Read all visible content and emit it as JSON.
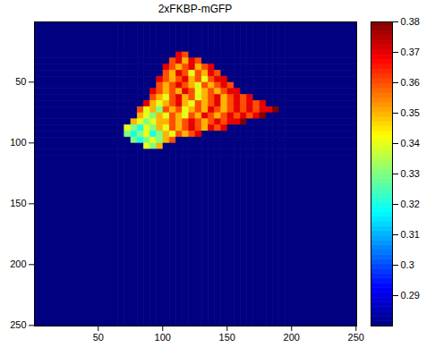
{
  "chart_data": {
    "type": "heatmap",
    "title": "2xFKBP-mGFP",
    "xlim": [
      0.5,
      250.5
    ],
    "ylim": [
      250.5,
      0.5
    ],
    "xticks": [
      50,
      100,
      150,
      200,
      250
    ],
    "yticks": [
      50,
      100,
      150,
      200,
      250
    ],
    "x_edges": [
      0.5,
      65.5,
      70.5,
      75.5,
      80.5,
      85.5,
      90.5,
      95.5,
      100.5,
      105.5,
      110.5,
      115.5,
      120.5,
      125.5,
      130.5,
      135.5,
      140.5,
      145.5,
      150.5,
      155.5,
      160.5,
      165.5,
      170.5,
      175.5,
      180.5,
      185.5,
      190.5,
      195.5,
      250.5
    ],
    "y_edges": [
      0.5,
      25.5,
      30.5,
      35.5,
      40.5,
      45.5,
      50.5,
      55.5,
      60.5,
      65.5,
      70.5,
      75.5,
      80.5,
      85.5,
      90.5,
      95.5,
      100.5,
      105.5,
      110.5,
      250.5
    ],
    "z": [
      [
        0.28,
        0.28,
        0.28,
        0.28,
        0.28,
        0.28,
        0.28,
        0.28,
        0.28,
        0.28,
        0.28,
        0.28,
        0.28,
        0.28,
        0.28,
        0.28,
        0.28,
        0.28,
        0.28,
        0.28,
        0.28,
        0.28,
        0.28,
        0.28,
        0.28,
        0.28,
        0.28,
        0.28
      ],
      [
        0.28,
        0.28,
        0.28,
        0.28,
        0.28,
        0.28,
        0.28,
        0.28,
        0.28,
        0.28,
        0.37,
        0.36,
        0.28,
        0.28,
        0.28,
        0.28,
        0.28,
        0.28,
        0.28,
        0.28,
        0.28,
        0.28,
        0.28,
        0.28,
        0.28,
        0.28,
        0.28,
        0.28
      ],
      [
        0.28,
        0.28,
        0.28,
        0.28,
        0.28,
        0.28,
        0.28,
        0.28,
        0.28,
        0.36,
        0.37,
        0.35,
        0.37,
        0.36,
        0.28,
        0.28,
        0.28,
        0.28,
        0.28,
        0.28,
        0.28,
        0.28,
        0.28,
        0.28,
        0.28,
        0.28,
        0.28,
        0.28
      ],
      [
        0.28,
        0.28,
        0.28,
        0.28,
        0.28,
        0.28,
        0.28,
        0.28,
        0.37,
        0.36,
        0.35,
        0.36,
        0.37,
        0.35,
        0.36,
        0.37,
        0.28,
        0.28,
        0.28,
        0.28,
        0.28,
        0.28,
        0.28,
        0.28,
        0.28,
        0.28,
        0.28,
        0.28
      ],
      [
        0.28,
        0.28,
        0.28,
        0.28,
        0.28,
        0.28,
        0.28,
        0.28,
        0.36,
        0.35,
        0.37,
        0.36,
        0.34,
        0.36,
        0.35,
        0.37,
        0.36,
        0.28,
        0.28,
        0.28,
        0.28,
        0.28,
        0.28,
        0.28,
        0.28,
        0.28,
        0.28,
        0.28
      ],
      [
        0.28,
        0.28,
        0.28,
        0.28,
        0.28,
        0.28,
        0.28,
        0.37,
        0.36,
        0.35,
        0.36,
        0.37,
        0.35,
        0.36,
        0.34,
        0.36,
        0.37,
        0.37,
        0.28,
        0.28,
        0.28,
        0.28,
        0.28,
        0.28,
        0.28,
        0.28,
        0.28,
        0.28
      ],
      [
        0.28,
        0.28,
        0.28,
        0.28,
        0.28,
        0.28,
        0.28,
        0.36,
        0.35,
        0.36,
        0.37,
        0.36,
        0.35,
        0.34,
        0.36,
        0.35,
        0.36,
        0.37,
        0.36,
        0.28,
        0.28,
        0.28,
        0.28,
        0.28,
        0.28,
        0.28,
        0.28,
        0.28
      ],
      [
        0.28,
        0.28,
        0.28,
        0.28,
        0.28,
        0.28,
        0.37,
        0.36,
        0.35,
        0.36,
        0.35,
        0.37,
        0.36,
        0.34,
        0.35,
        0.36,
        0.35,
        0.36,
        0.37,
        0.37,
        0.28,
        0.28,
        0.28,
        0.28,
        0.28,
        0.28,
        0.28,
        0.28
      ],
      [
        0.28,
        0.28,
        0.28,
        0.28,
        0.28,
        0.28,
        0.36,
        0.35,
        0.34,
        0.36,
        0.37,
        0.35,
        0.36,
        0.34,
        0.35,
        0.36,
        0.37,
        0.35,
        0.36,
        0.37,
        0.36,
        0.37,
        0.28,
        0.28,
        0.28,
        0.28,
        0.28,
        0.28
      ],
      [
        0.28,
        0.28,
        0.28,
        0.28,
        0.28,
        0.37,
        0.35,
        0.34,
        0.35,
        0.36,
        0.37,
        0.35,
        0.34,
        0.36,
        0.35,
        0.36,
        0.37,
        0.35,
        0.36,
        0.37,
        0.36,
        0.37,
        0.36,
        0.37,
        0.28,
        0.28,
        0.28,
        0.28
      ],
      [
        0.28,
        0.28,
        0.28,
        0.28,
        0.36,
        0.34,
        0.35,
        0.33,
        0.36,
        0.35,
        0.36,
        0.34,
        0.35,
        0.36,
        0.35,
        0.37,
        0.36,
        0.35,
        0.36,
        0.37,
        0.36,
        0.37,
        0.36,
        0.37,
        0.37,
        0.38,
        0.28,
        0.28
      ],
      [
        0.28,
        0.28,
        0.28,
        0.28,
        0.35,
        0.34,
        0.33,
        0.35,
        0.34,
        0.36,
        0.35,
        0.34,
        0.36,
        0.35,
        0.37,
        0.36,
        0.35,
        0.36,
        0.37,
        0.36,
        0.37,
        0.36,
        0.37,
        0.38,
        0.28,
        0.28,
        0.28,
        0.28
      ],
      [
        0.28,
        0.28,
        0.28,
        0.35,
        0.34,
        0.33,
        0.34,
        0.35,
        0.35,
        0.36,
        0.35,
        0.36,
        0.37,
        0.36,
        0.35,
        0.36,
        0.37,
        0.36,
        0.37,
        0.37,
        0.38,
        0.28,
        0.28,
        0.28,
        0.28,
        0.28,
        0.28,
        0.28
      ],
      [
        0.28,
        0.28,
        0.34,
        0.33,
        0.32,
        0.34,
        0.33,
        0.35,
        0.34,
        0.36,
        0.35,
        0.36,
        0.37,
        0.36,
        0.35,
        0.37,
        0.36,
        0.37,
        0.28,
        0.28,
        0.28,
        0.28,
        0.28,
        0.28,
        0.28,
        0.28,
        0.28,
        0.28
      ],
      [
        0.28,
        0.28,
        0.33,
        0.32,
        0.33,
        0.34,
        0.32,
        0.33,
        0.35,
        0.34,
        0.36,
        0.35,
        0.36,
        0.37,
        0.28,
        0.28,
        0.28,
        0.28,
        0.28,
        0.28,
        0.28,
        0.28,
        0.28,
        0.28,
        0.28,
        0.28,
        0.28,
        0.28
      ],
      [
        0.28,
        0.28,
        0.28,
        0.33,
        0.32,
        0.33,
        0.34,
        0.33,
        0.35,
        0.36,
        0.28,
        0.28,
        0.28,
        0.28,
        0.28,
        0.28,
        0.28,
        0.28,
        0.28,
        0.28,
        0.28,
        0.28,
        0.28,
        0.28,
        0.28,
        0.28,
        0.28,
        0.28
      ],
      [
        0.28,
        0.28,
        0.28,
        0.28,
        0.28,
        0.34,
        0.33,
        0.35,
        0.28,
        0.28,
        0.28,
        0.28,
        0.28,
        0.28,
        0.28,
        0.28,
        0.28,
        0.28,
        0.28,
        0.28,
        0.28,
        0.28,
        0.28,
        0.28,
        0.28,
        0.28,
        0.28,
        0.28
      ],
      [
        0.28,
        0.28,
        0.28,
        0.28,
        0.28,
        0.28,
        0.28,
        0.28,
        0.28,
        0.28,
        0.28,
        0.28,
        0.28,
        0.28,
        0.28,
        0.28,
        0.28,
        0.28,
        0.28,
        0.28,
        0.28,
        0.28,
        0.28,
        0.28,
        0.28,
        0.28,
        0.28,
        0.28
      ],
      [
        0.28,
        0.28,
        0.28,
        0.28,
        0.28,
        0.28,
        0.28,
        0.28,
        0.28,
        0.28,
        0.28,
        0.28,
        0.28,
        0.28,
        0.28,
        0.28,
        0.28,
        0.28,
        0.28,
        0.28,
        0.28,
        0.28,
        0.28,
        0.28,
        0.28,
        0.28,
        0.28,
        0.28
      ]
    ],
    "colorbar": {
      "range": [
        0.28,
        0.38
      ],
      "ticks": [
        0.29,
        0.3,
        0.31,
        0.32,
        0.33,
        0.34,
        0.35,
        0.36,
        0.37,
        0.38
      ]
    }
  }
}
